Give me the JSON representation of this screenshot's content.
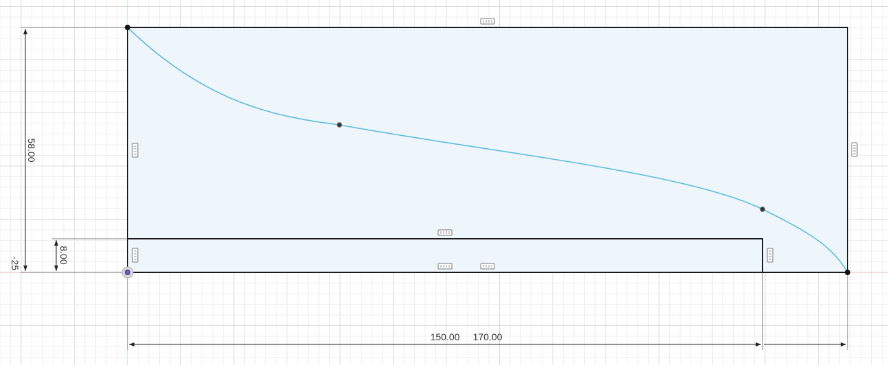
{
  "sketch": {
    "dimensions": {
      "height_total": "58.00",
      "height_inner": "8.00",
      "origin_offset": "-25",
      "width_inner": "150.00",
      "width_total": "170.00"
    },
    "colors": {
      "profile_fill": "#eef6fc",
      "spline": "#5bbde0",
      "edge": "#1a1a1a",
      "origin": "#6a5acd"
    },
    "icons": [
      "horizontal-constraint-icon",
      "vertical-constraint-icon",
      "origin-point-icon",
      "sketch-point-icon"
    ]
  }
}
